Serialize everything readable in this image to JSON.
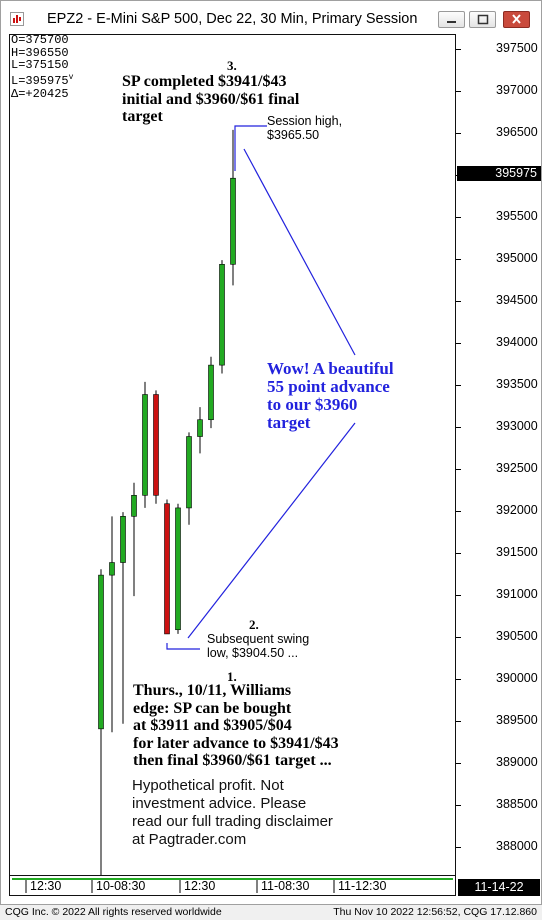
{
  "window": {
    "title": "EPZ2 - E-Mini S&P 500, Dec 22, 30 Min, Primary Session",
    "icon": "chart-app-icon",
    "buttons": [
      "minimize-icon",
      "maximize-icon",
      "close-icon"
    ]
  },
  "values_box": [
    {
      "label": "O=",
      "value": "375700"
    },
    {
      "label": "H=",
      "value": "396550"
    },
    {
      "label": "L=",
      "value": "375150"
    },
    {
      "label": "L=",
      "value": "395975",
      "mark": "v"
    },
    {
      "label": "Δ=",
      "value": "+20425"
    }
  ],
  "last_price": "395975",
  "current_date": "11-14-22",
  "annotations": {
    "a3_num": "3.",
    "a3_line1": "SP completed $3941/$43",
    "a3_line2": "initial and $3960/$61 final",
    "a3_line3": "target",
    "session_high_1": "Session high,",
    "session_high_2": "$3965.50",
    "wow_1": "Wow! A beautiful",
    "wow_2": "55 point advance",
    "wow_3": "to our $3960",
    "wow_4": "target",
    "a2_num": "2.",
    "swing_1": "Subsequent swing",
    "swing_2": "low, $3904.50 ...",
    "a1_num": "1.",
    "a1_line1": "Thurs., 10/11, Williams",
    "a1_line2": "edge: SP can be bought",
    "a1_line3": "at $3911 and $3905/$04",
    "a1_line4": "for later advance to $3941/$43",
    "a1_line5": "then final $3960/$61 target ...",
    "disc_1": "Hypothetical profit. Not",
    "disc_2": "investment advice. Please",
    "disc_3": "read our full trading disclaimer",
    "disc_4": "at Pagtrader.com"
  },
  "status": {
    "left": "CQG Inc. © 2022 All rights reserved worldwide",
    "right": "Thu Nov 10 2022 12:56:52, CQG 17.12.860"
  },
  "chart_data": {
    "type": "candlestick",
    "title": "EPZ2 - E-Mini S&P 500, Dec 22, 30 Min, Primary Session",
    "up_color": "#22aa22",
    "down_color": "#cc1111",
    "ylim": [
      387680,
      397680
    ],
    "y_ticks": [
      "397500",
      "397000",
      "396500",
      "396000",
      "395500",
      "395000",
      "394500",
      "394000",
      "393500",
      "393000",
      "392500",
      "392000",
      "391500",
      "391000",
      "390500",
      "390000",
      "389500",
      "389000",
      "388500",
      "388000"
    ],
    "y_ticks_values": [
      397500,
      397000,
      396500,
      396000,
      395500,
      395000,
      394500,
      394000,
      393500,
      393000,
      392500,
      392000,
      391500,
      391000,
      390500,
      390000,
      389500,
      389000,
      388500,
      388000
    ],
    "x_labels": [
      {
        "label": "12:30",
        "bar": 0
      },
      {
        "label": "10-08:30",
        "bar": 6
      },
      {
        "label": "12:30",
        "bar": 14
      },
      {
        "label": "11-08:30",
        "bar": 21
      },
      {
        "label": "11-12:30",
        "bar": 28
      }
    ],
    "candles": [
      {
        "o": 389420,
        "h": 391320,
        "l": 387500,
        "c": 391250
      },
      {
        "o": 391250,
        "h": 391950,
        "l": 389380,
        "c": 391400
      },
      {
        "o": 391400,
        "h": 392000,
        "l": 389480,
        "c": 391950
      },
      {
        "o": 391950,
        "h": 392350,
        "l": 391000,
        "c": 392200
      },
      {
        "o": 392200,
        "h": 393550,
        "l": 392050,
        "c": 393400
      },
      {
        "o": 393400,
        "h": 393450,
        "l": 392100,
        "c": 392200
      },
      {
        "o": 392100,
        "h": 392150,
        "l": 390550,
        "c": 390550
      },
      {
        "o": 390600,
        "h": 392100,
        "l": 390550,
        "c": 392050
      },
      {
        "o": 392050,
        "h": 392950,
        "l": 391850,
        "c": 392900
      },
      {
        "o": 392900,
        "h": 393250,
        "l": 392700,
        "c": 393100
      },
      {
        "o": 393100,
        "h": 393850,
        "l": 393000,
        "c": 393750
      },
      {
        "o": 393750,
        "h": 395000,
        "l": 393650,
        "c": 394950
      },
      {
        "o": 394950,
        "h": 396550,
        "l": 394700,
        "c": 395975
      }
    ]
  }
}
